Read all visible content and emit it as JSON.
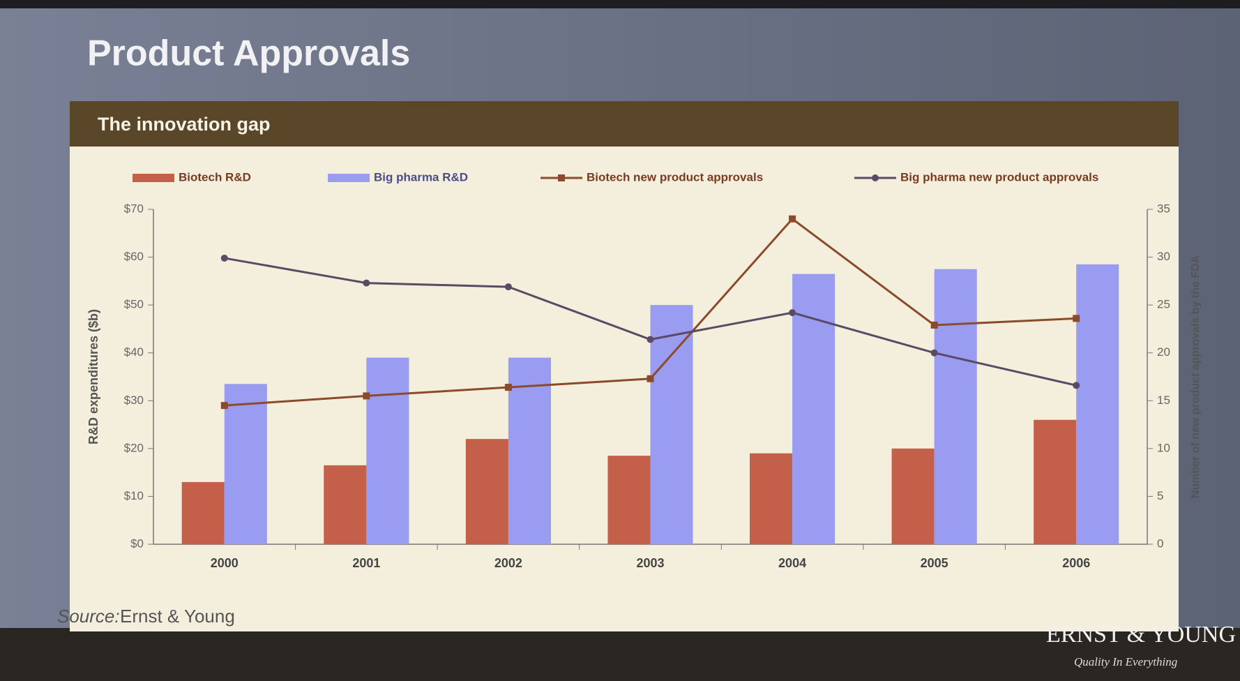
{
  "slide": {
    "title": "Product Approvals",
    "source_label": "Source:",
    "source_name": "Ernst & Young",
    "logo": "ERNST & YOUNG",
    "tagline": "Quality In Everything"
  },
  "chart_data": {
    "type": "bar-line",
    "title": "The innovation gap",
    "categories": [
      "2000",
      "2001",
      "2002",
      "2003",
      "2004",
      "2005",
      "2006"
    ],
    "y_label": "R&D expenditures ($b)",
    "y2_label": "Number of new product approvals by the FDA",
    "ylim": [
      0,
      70
    ],
    "yticks": [
      {
        "value": 0,
        "label": "$0"
      },
      {
        "value": 10,
        "label": "$10"
      },
      {
        "value": 20,
        "label": "$20"
      },
      {
        "value": 30,
        "label": "$30"
      },
      {
        "value": 40,
        "label": "$40"
      },
      {
        "value": 50,
        "label": "$50"
      },
      {
        "value": 60,
        "label": "$60"
      },
      {
        "value": 70,
        "label": "$70"
      }
    ],
    "y2lim": [
      0,
      35
    ],
    "y2ticks": [
      0,
      5,
      10,
      15,
      20,
      25,
      30,
      35
    ],
    "series": [
      {
        "name": "Biotech R&D",
        "kind": "bar",
        "color": "#c4604a",
        "values": [
          13,
          16.5,
          22,
          18.5,
          19,
          20,
          26
        ]
      },
      {
        "name": "Big pharma R&D",
        "kind": "bar",
        "color": "#9a9cf2",
        "values": [
          33.5,
          39,
          39,
          50,
          56.5,
          57.5,
          58.5
        ]
      },
      {
        "name": "Biotech new product approvals",
        "kind": "line",
        "marker": "square",
        "axis": "y2",
        "color": "#8b4a2a",
        "values": [
          14.5,
          15.5,
          16.4,
          17.3,
          34,
          22.9,
          23.6
        ]
      },
      {
        "name": "Big pharma new product approvals",
        "kind": "line",
        "marker": "circle",
        "axis": "y2",
        "color": "#5a4a66",
        "values": [
          29.9,
          27.3,
          26.9,
          21.4,
          24.2,
          20,
          16.6
        ]
      }
    ]
  }
}
